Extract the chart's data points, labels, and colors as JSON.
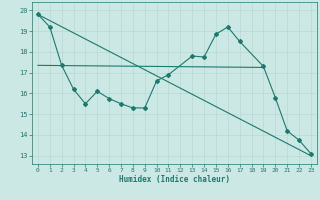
{
  "xlabel": "Humidex (Indice chaleur)",
  "bg_color": "#cce8e4",
  "line_color": "#1a7a6e",
  "grid_color": "#b8d8d4",
  "x_ticks": [
    0,
    1,
    2,
    3,
    4,
    5,
    6,
    7,
    8,
    9,
    10,
    11,
    12,
    13,
    14,
    15,
    16,
    17,
    18,
    19,
    20,
    21,
    22,
    23
  ],
  "y_ticks": [
    13,
    14,
    15,
    16,
    17,
    18,
    19,
    20
  ],
  "ylim": [
    12.6,
    20.4
  ],
  "xlim": [
    -0.5,
    23.5
  ],
  "series1_x": [
    0,
    1,
    2,
    3,
    4,
    5,
    6,
    7,
    8,
    9,
    10,
    11,
    13,
    14,
    15,
    16,
    17,
    19,
    20,
    21,
    22,
    23
  ],
  "series1_y": [
    19.8,
    19.2,
    17.35,
    16.2,
    15.5,
    16.1,
    15.75,
    15.5,
    15.3,
    15.3,
    16.6,
    16.9,
    17.8,
    17.75,
    18.85,
    19.2,
    18.5,
    17.3,
    15.8,
    14.2,
    13.75,
    13.1
  ],
  "series2_x": [
    0,
    19
  ],
  "series2_y": [
    17.35,
    17.25
  ],
  "series3_x": [
    0,
    23
  ],
  "series3_y": [
    19.8,
    13.0
  ]
}
